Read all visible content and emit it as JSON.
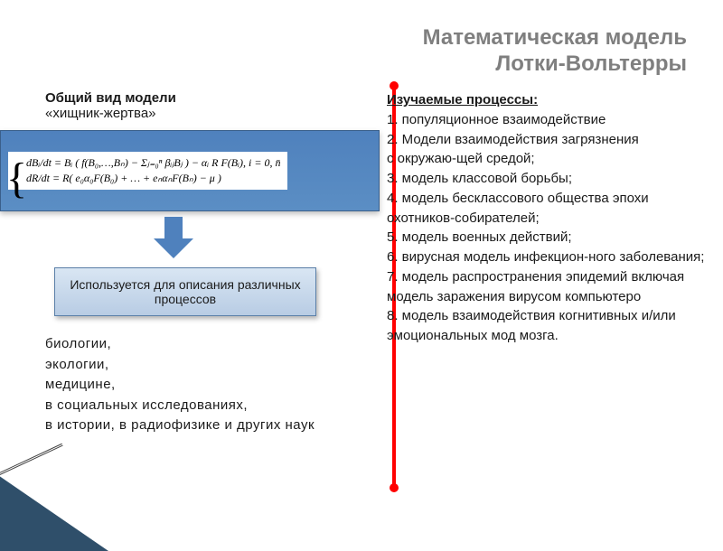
{
  "title": {
    "line1": "Математическая модель",
    "line2": "Лотки-Вольтерры",
    "color": "#7f7f7f",
    "fontsize": 24
  },
  "subtitle": {
    "line1": "Общий вид модели",
    "line2": "«хищник-жертва»"
  },
  "formula": {
    "eq1": "dBᵢ/dt = Bᵢ ( f(B₀,…,Bₙ) − Σⱼ₌₀ⁿ βᵢⱼBⱼ ) − αᵢ R F(Bᵢ),   i = 0, n̄",
    "eq2": "dR/dt = R( e₀α₀F(B₀) + … + eₙαₙF(Bₙ) − μ )",
    "box_color_top": "#4f81bd",
    "box_color_bottom": "#5b8ec4",
    "border_color": "#3a5f8a"
  },
  "arrow": {
    "color": "#4f81bd"
  },
  "process_box": {
    "text": "Используется для описания различных процессов",
    "bg_top": "#d9e6f3",
    "bg_bottom": "#b8cce4",
    "border": "#5a7fa8"
  },
  "fields": {
    "lines": [
      "биологии,",
      "экологии,",
      "медицине,",
      "в социальных исследованиях,",
      "в истории, в радиофизике и других наук"
    ]
  },
  "right": {
    "heading": "Изучаемые процессы:",
    "items": [
      "1.  популяционное взаимодействие",
      "2. Модели взаимодействия загрязнения",
      "с окружаю-щей средой;",
      "3. модель классовой борьбы;",
      "4. модель бесклассового общества эпохи охотников-собирателей;",
      "5. модель военных действий;",
      "6. вирусная модель инфекцион-ного заболевания;",
      "7. модель распространения эпидемий включая модель заражения вирусом компьютеро",
      "8. модель взаимодействия когнитивных и/или эмоциональных мод мозга."
    ]
  },
  "red_line_color": "#ff0000",
  "corner_color": "#0a3050",
  "background_color": "#ffffff"
}
